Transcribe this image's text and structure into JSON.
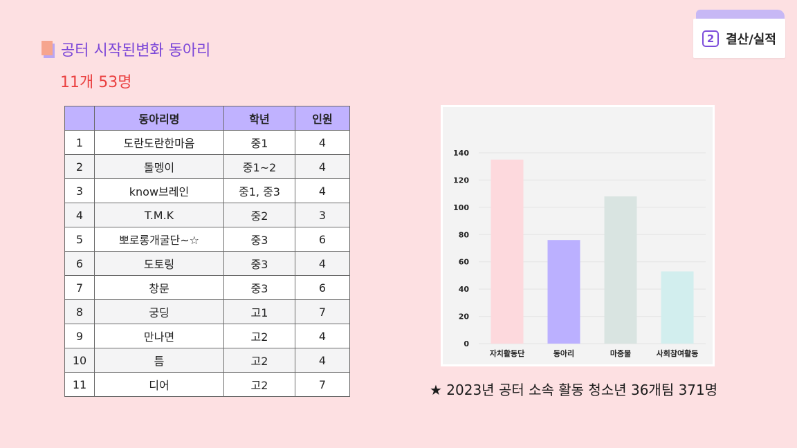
{
  "section_badge": {
    "number": "2",
    "label": "결산/실적"
  },
  "title": "공터 시작된변화 동아리",
  "subtitle": "11개 53명",
  "table": {
    "headers": [
      "",
      "동아리명",
      "학년",
      "인원"
    ],
    "rows": [
      [
        "1",
        "도란도란한마음",
        "중1",
        "4"
      ],
      [
        "2",
        "돌멩이",
        "중1~2",
        "4"
      ],
      [
        "3",
        "know브레인",
        "중1, 중3",
        "4"
      ],
      [
        "4",
        "T.M.K",
        "중2",
        "3"
      ],
      [
        "5",
        "뽀로롱개굴단~☆",
        "중3",
        "6"
      ],
      [
        "6",
        "도토링",
        "중3",
        "4"
      ],
      [
        "7",
        "창문",
        "중3",
        "6"
      ],
      [
        "8",
        "궁딩",
        "고1",
        "7"
      ],
      [
        "9",
        "만나면",
        "고2",
        "4"
      ],
      [
        "10",
        "틈",
        "고2",
        "4"
      ],
      [
        "11",
        "디어",
        "고2",
        "7"
      ]
    ]
  },
  "chart_data": {
    "type": "bar",
    "categories": [
      "자치활동단",
      "동아리",
      "마중물",
      "사회참여활동"
    ],
    "values": [
      135,
      76,
      108,
      53
    ],
    "colors": [
      "#fdd9dd",
      "#bbb0ff",
      "#d9e4e1",
      "#d2eeee"
    ],
    "ylim": [
      0,
      140
    ],
    "yticks": [
      0,
      20,
      40,
      60,
      80,
      100,
      120,
      140
    ],
    "grid": true
  },
  "footnote": "★ 2023년 공터 소속 활동 청소년 36개팀 371명"
}
